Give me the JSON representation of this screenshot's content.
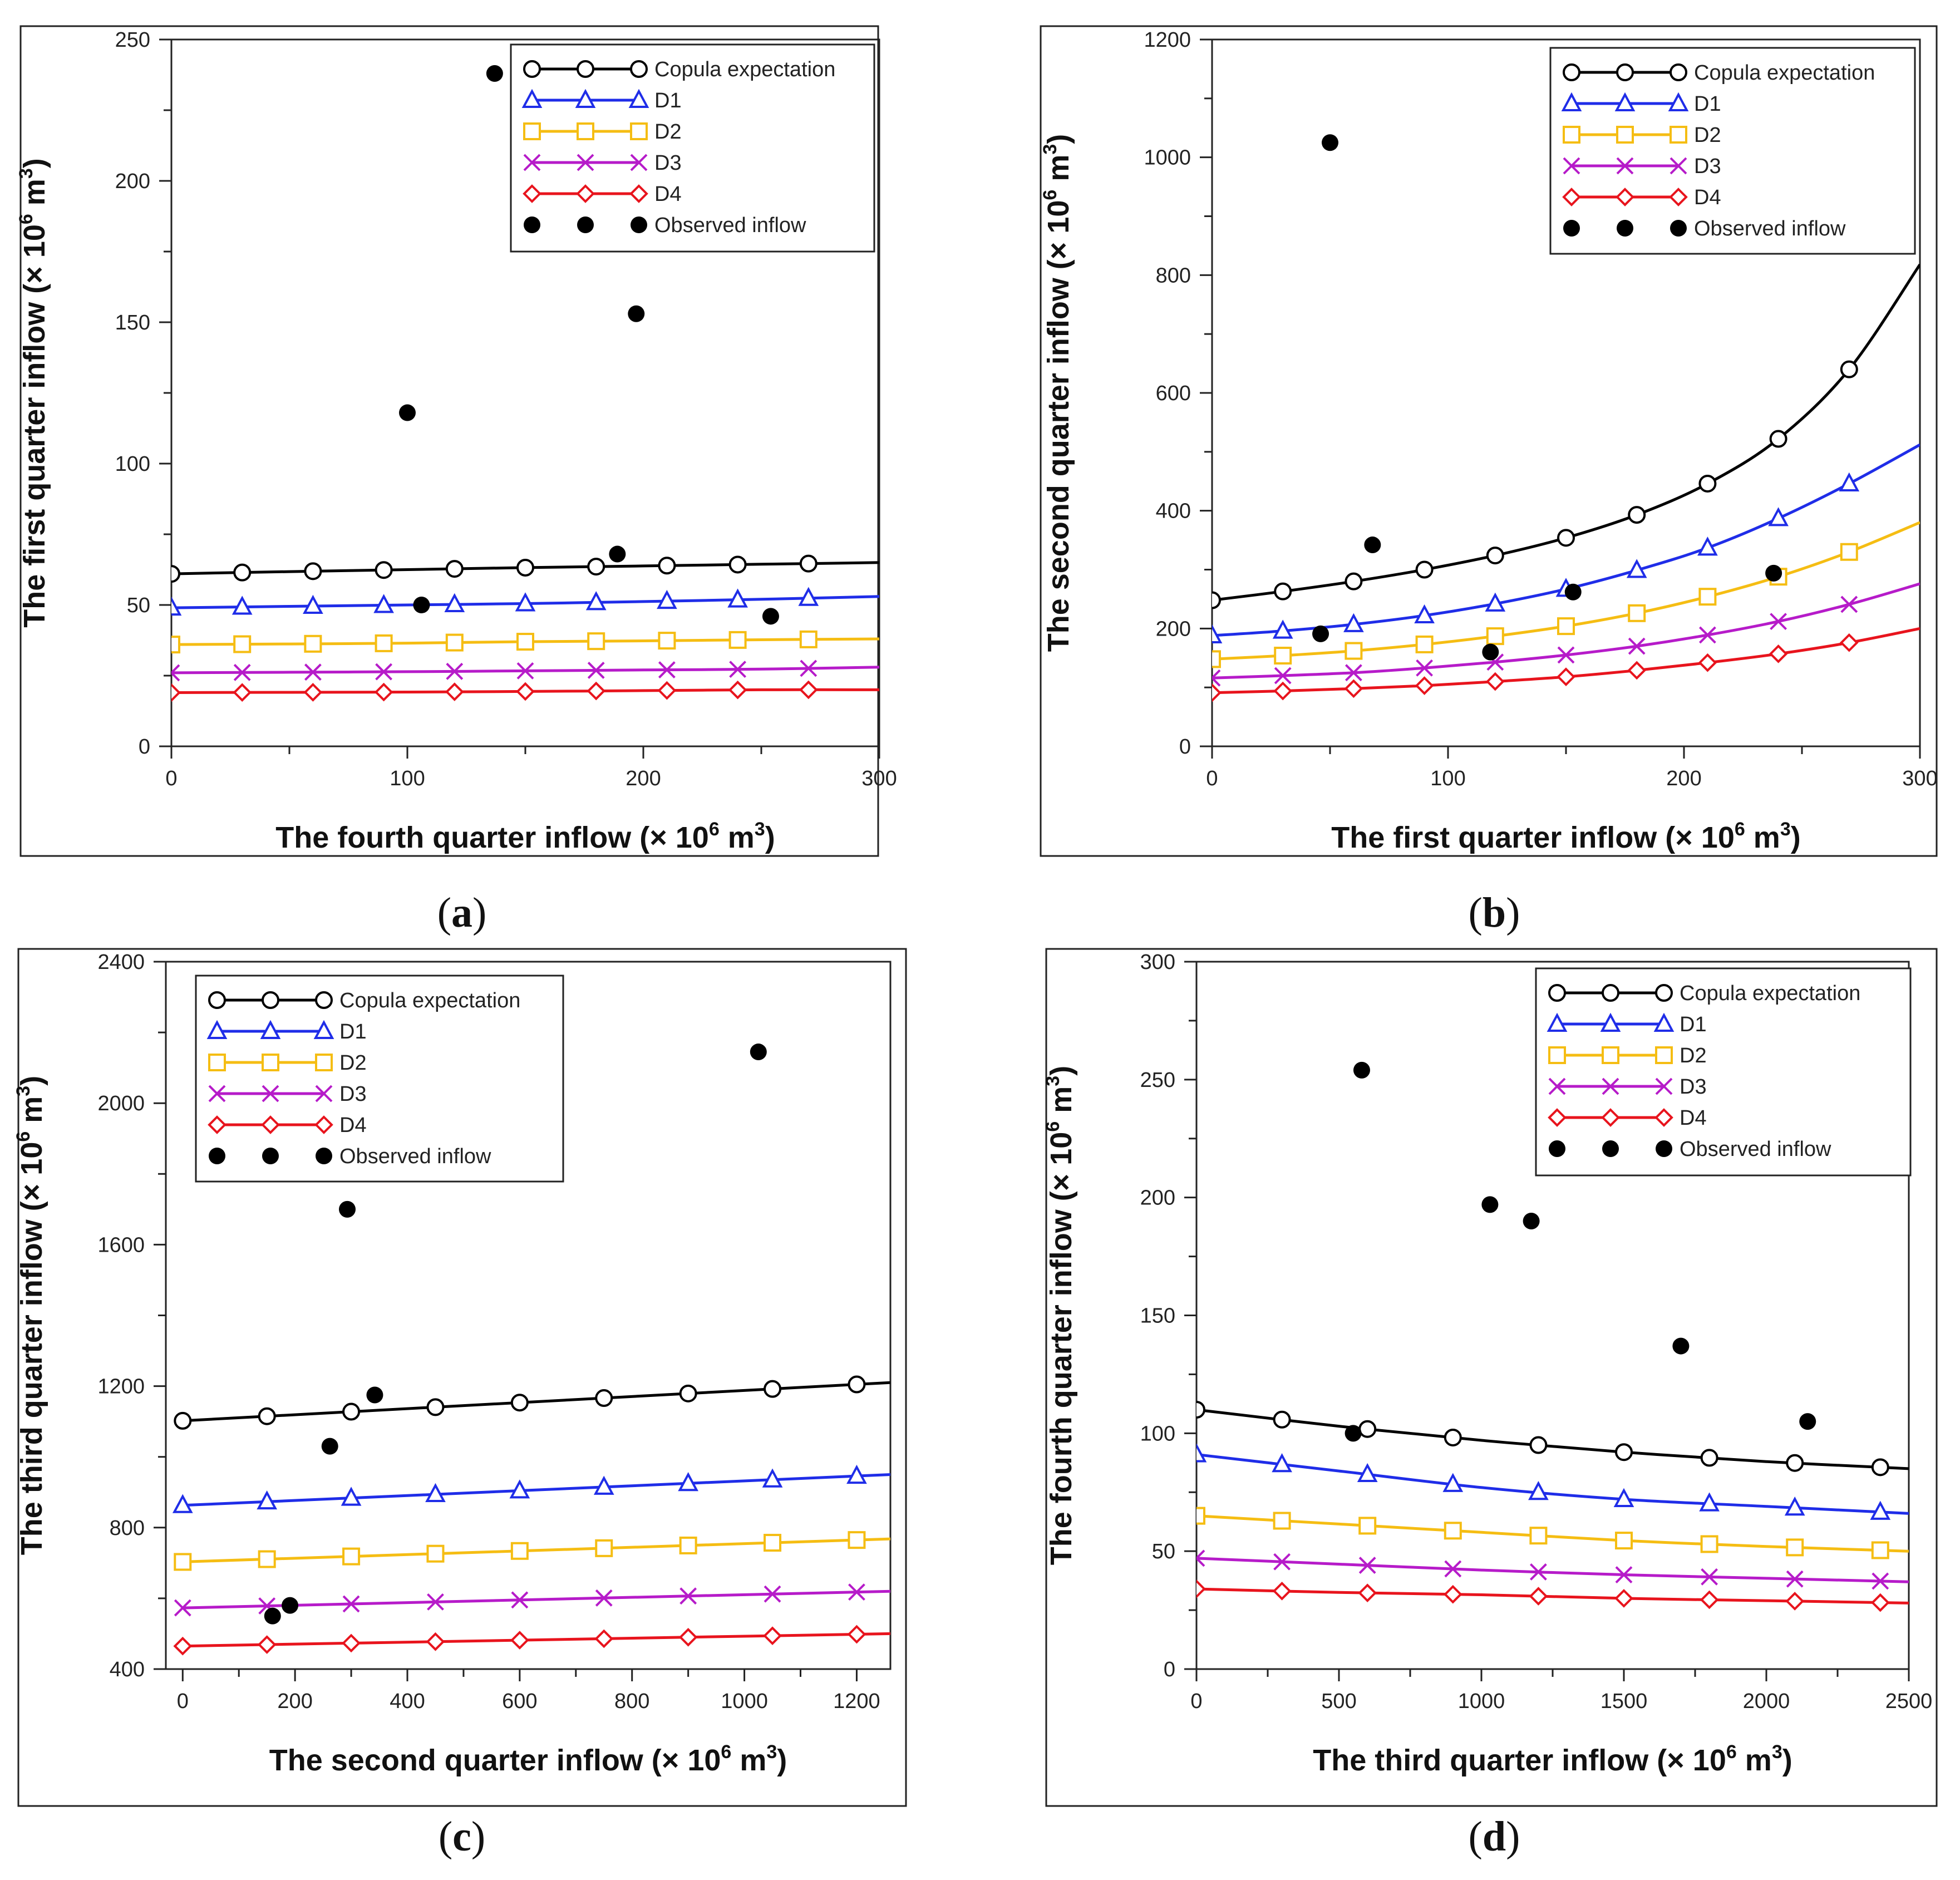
{
  "colors": {
    "copula": "#000000",
    "d1": "#1f2de8",
    "d2": "#f5bd13",
    "d3": "#b61bc9",
    "d4": "#e8141d",
    "observed": "#000000"
  },
  "legend_labels": [
    "Copula expectation",
    "D1",
    "D2",
    "D3",
    "D4",
    "Observed inflow"
  ],
  "chart_data": [
    {
      "type": "line",
      "caption_letter": "a",
      "xlabel_main": "The fourth quarter inflow (× 10",
      "ylabel_main": "The first quarter inflow (× 10",
      "unit_exp": "6",
      "unit_m": " m",
      "unit_m_exp": "3",
      "unit_close": ")",
      "xlim": [
        0,
        300
      ],
      "ylim": [
        0,
        250
      ],
      "xticks": [
        0,
        100,
        200,
        300
      ],
      "yticks": [
        0,
        50,
        100,
        150,
        200,
        250
      ],
      "xminor": 50,
      "yminor": 25,
      "legend_position": "top-right",
      "series": [
        {
          "name": "Copula expectation",
          "key": "copula",
          "marker": "circle",
          "marker_x": [
            0,
            30,
            60,
            90,
            120,
            150,
            180,
            210,
            240,
            270
          ],
          "x": [
            0,
            50,
            100,
            150,
            200,
            250,
            300
          ],
          "y": [
            61,
            61.8,
            62.5,
            63.2,
            63.8,
            64.4,
            65
          ]
        },
        {
          "name": "D1",
          "key": "d1",
          "marker": "triangle",
          "marker_x": [
            0,
            30,
            60,
            90,
            120,
            150,
            180,
            210,
            240,
            270
          ],
          "x": [
            0,
            50,
            100,
            150,
            200,
            250,
            300
          ],
          "y": [
            49,
            49.5,
            50,
            50.5,
            51.2,
            52,
            53
          ]
        },
        {
          "name": "D2",
          "key": "d2",
          "marker": "square",
          "marker_x": [
            0,
            30,
            60,
            90,
            120,
            150,
            180,
            210,
            240,
            270
          ],
          "x": [
            0,
            50,
            100,
            150,
            200,
            250,
            300
          ],
          "y": [
            36,
            36.2,
            36.5,
            37,
            37.3,
            37.7,
            38
          ]
        },
        {
          "name": "D3",
          "key": "d3",
          "marker": "x",
          "marker_x": [
            0,
            30,
            60,
            90,
            120,
            150,
            180,
            210,
            240,
            270
          ],
          "x": [
            0,
            50,
            100,
            150,
            200,
            250,
            300
          ],
          "y": [
            26,
            26.2,
            26.4,
            26.7,
            27,
            27.3,
            28
          ]
        },
        {
          "name": "D4",
          "key": "d4",
          "marker": "diamond",
          "marker_x": [
            0,
            30,
            60,
            90,
            120,
            150,
            180,
            210,
            240,
            270
          ],
          "x": [
            0,
            50,
            100,
            150,
            200,
            250,
            300
          ],
          "y": [
            19,
            19.1,
            19.2,
            19.4,
            19.7,
            20,
            20
          ]
        }
      ],
      "observed": {
        "name": "Observed inflow",
        "x": [
          137,
          197,
          100,
          189,
          106,
          254
        ],
        "y": [
          238,
          153,
          118,
          68,
          50,
          46
        ]
      }
    },
    {
      "type": "line",
      "caption_letter": "b",
      "xlabel_main": "The first quarter inflow (× 10",
      "ylabel_main": "The second quarter inflow (× 10",
      "unit_exp": "6",
      "unit_m": " m",
      "unit_m_exp": "3",
      "unit_close": ")",
      "xlim": [
        0,
        300
      ],
      "ylim": [
        0,
        1200
      ],
      "xticks": [
        0,
        100,
        200,
        300
      ],
      "yticks": [
        0,
        200,
        400,
        600,
        800,
        1000,
        1200
      ],
      "xminor": 50,
      "yminor": 100,
      "legend_position": "top-right",
      "series": [
        {
          "name": "Copula expectation",
          "key": "copula",
          "marker": "circle",
          "marker_x": [
            0,
            30,
            60,
            90,
            120,
            150,
            180,
            210,
            240,
            270
          ],
          "x": [
            0,
            30,
            60,
            90,
            120,
            150,
            180,
            210,
            240,
            270,
            300
          ],
          "y": [
            248,
            263,
            280,
            300,
            324,
            354,
            393,
            446,
            522,
            640,
            818
          ]
        },
        {
          "name": "D1",
          "key": "d1",
          "marker": "triangle",
          "marker_x": [
            0,
            30,
            60,
            90,
            120,
            150,
            180,
            210,
            240,
            270
          ],
          "x": [
            0,
            30,
            60,
            90,
            120,
            150,
            180,
            210,
            240,
            270,
            300
          ],
          "y": [
            188,
            196,
            207,
            222,
            242,
            267,
            299,
            337,
            387,
            446,
            512
          ]
        },
        {
          "name": "D2",
          "key": "d2",
          "marker": "square",
          "marker_x": [
            0,
            30,
            60,
            90,
            120,
            150,
            180,
            210,
            240,
            270
          ],
          "x": [
            0,
            30,
            60,
            90,
            120,
            150,
            180,
            210,
            240,
            270,
            300
          ],
          "y": [
            148,
            154,
            162,
            173,
            187,
            204,
            226,
            254,
            288,
            330,
            380
          ]
        },
        {
          "name": "D3",
          "key": "d3",
          "marker": "x",
          "marker_x": [
            0,
            30,
            60,
            90,
            120,
            150,
            180,
            210,
            240,
            270
          ],
          "x": [
            0,
            30,
            60,
            90,
            120,
            150,
            180,
            210,
            240,
            270,
            300
          ],
          "y": [
            116,
            120,
            125,
            133,
            143,
            155,
            170,
            189,
            212,
            241,
            276
          ]
        },
        {
          "name": "D4",
          "key": "d4",
          "marker": "diamond",
          "marker_x": [
            0,
            30,
            60,
            90,
            120,
            150,
            180,
            210,
            240,
            270
          ],
          "x": [
            0,
            30,
            60,
            90,
            120,
            150,
            180,
            210,
            240,
            270,
            300
          ],
          "y": [
            91,
            94,
            98,
            103,
            110,
            118,
            129,
            142,
            157,
            176,
            200
          ]
        }
      ],
      "observed": {
        "name": "Observed inflow",
        "x": [
          50,
          68,
          46,
          153,
          118,
          238
        ],
        "y": [
          1025,
          342,
          191,
          262,
          160,
          294
        ]
      }
    },
    {
      "type": "line",
      "caption_letter": "c",
      "xlabel_main": "The second quarter inflow (× 10",
      "ylabel_main": "The third quarter inflow (× 10",
      "unit_exp": "6",
      "unit_m": " m",
      "unit_m_exp": "3",
      "unit_close": ")",
      "xlim": [
        -30,
        1260
      ],
      "ylim": [
        400,
        2400
      ],
      "xticks": [
        0,
        200,
        400,
        600,
        800,
        1000,
        1200
      ],
      "yticks": [
        400,
        800,
        1200,
        1600,
        2000,
        2400
      ],
      "xminor": 100,
      "yminor": 200,
      "legend_position": "top-left",
      "series": [
        {
          "name": "Copula expectation",
          "key": "copula",
          "marker": "circle",
          "marker_x": [
            0,
            150,
            300,
            450,
            600,
            750,
            900,
            1050,
            1200
          ],
          "x": [
            0,
            1260
          ],
          "y": [
            1102,
            1210
          ]
        },
        {
          "name": "D1",
          "key": "d1",
          "marker": "triangle",
          "marker_x": [
            0,
            150,
            300,
            450,
            600,
            750,
            900,
            1050,
            1200
          ],
          "x": [
            0,
            1260
          ],
          "y": [
            863,
            950
          ]
        },
        {
          "name": "D2",
          "key": "d2",
          "marker": "square",
          "marker_x": [
            0,
            150,
            300,
            450,
            600,
            750,
            900,
            1050,
            1200
          ],
          "x": [
            0,
            1260
          ],
          "y": [
            703,
            768
          ]
        },
        {
          "name": "D3",
          "key": "d3",
          "marker": "x",
          "marker_x": [
            0,
            150,
            300,
            450,
            600,
            750,
            900,
            1050,
            1200
          ],
          "x": [
            0,
            1260
          ],
          "y": [
            573,
            620
          ]
        },
        {
          "name": "D4",
          "key": "d4",
          "marker": "diamond",
          "marker_x": [
            0,
            150,
            300,
            450,
            600,
            750,
            900,
            1050,
            1200
          ],
          "x": [
            0,
            1260
          ],
          "y": [
            465,
            500
          ]
        }
      ],
      "observed": {
        "name": "Observed inflow",
        "x": [
          1025,
          293,
          342,
          262,
          191,
          160
        ],
        "y": [
          2145,
          1700,
          1175,
          1030,
          580,
          550
        ]
      }
    },
    {
      "type": "line",
      "caption_letter": "d",
      "xlabel_main": "The third quarter inflow (× 10",
      "ylabel_main": "The fourth quarter inflow (× 10",
      "unit_exp": "6",
      "unit_m": " m",
      "unit_m_exp": "3",
      "unit_close": ")",
      "xlim": [
        0,
        2500
      ],
      "ylim": [
        0,
        300
      ],
      "xticks": [
        0,
        500,
        1000,
        1500,
        2000,
        2500
      ],
      "yticks": [
        0,
        50,
        100,
        150,
        200,
        250,
        300
      ],
      "xminor": 250,
      "yminor": 25,
      "legend_position": "top-right",
      "series": [
        {
          "name": "Copula expectation",
          "key": "copula",
          "marker": "circle",
          "marker_x": [
            0,
            300,
            600,
            900,
            1200,
            1500,
            1800,
            2100,
            2400
          ],
          "x": [
            0,
            500,
            1000,
            1500,
            2000,
            2500
          ],
          "y": [
            110,
            103,
            97,
            92,
            88,
            85
          ]
        },
        {
          "name": "D1",
          "key": "d1",
          "marker": "triangle",
          "marker_x": [
            0,
            300,
            600,
            900,
            1200,
            1500,
            1800,
            2100,
            2400
          ],
          "x": [
            0,
            500,
            1000,
            1500,
            2000,
            2500
          ],
          "y": [
            91,
            84,
            77,
            72,
            69,
            66
          ]
        },
        {
          "name": "D2",
          "key": "d2",
          "marker": "square",
          "marker_x": [
            0,
            300,
            600,
            900,
            1200,
            1500,
            1800,
            2100,
            2400
          ],
          "x": [
            0,
            500,
            1000,
            1500,
            2000,
            2500
          ],
          "y": [
            65,
            61.5,
            58,
            54.5,
            52,
            50
          ]
        },
        {
          "name": "D3",
          "key": "d3",
          "marker": "x",
          "marker_x": [
            0,
            300,
            600,
            900,
            1200,
            1500,
            1800,
            2100,
            2400
          ],
          "x": [
            0,
            500,
            1000,
            1500,
            2000,
            2500
          ],
          "y": [
            47,
            44.5,
            42,
            40,
            38.5,
            37
          ]
        },
        {
          "name": "D4",
          "key": "d4",
          "marker": "diamond",
          "marker_x": [
            0,
            300,
            600,
            900,
            1200,
            1500,
            1800,
            2100,
            2400
          ],
          "x": [
            0,
            500,
            1000,
            1500,
            2000,
            2500
          ],
          "y": [
            34,
            32.5,
            31.5,
            30,
            29,
            28
          ]
        }
      ],
      "observed": {
        "name": "Observed inflow",
        "x": [
          580,
          1030,
          1175,
          1700,
          2145,
          550
        ],
        "y": [
          254,
          197,
          190,
          137,
          105,
          100
        ]
      }
    }
  ]
}
